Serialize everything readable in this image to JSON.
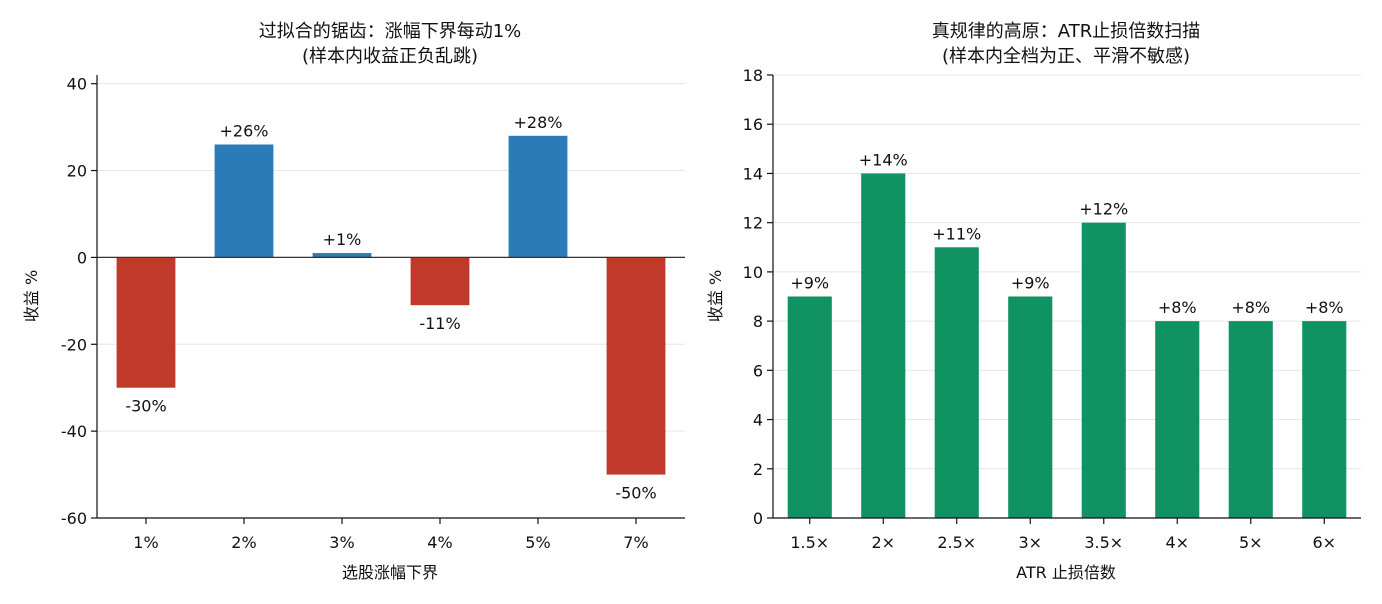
{
  "chart_data": [
    {
      "type": "bar",
      "title": "过拟合的锯齿：涨幅下界每动1%",
      "subtitle": "(样本内收益正负乱跳)",
      "xlabel": "选股涨幅下界",
      "ylabel": "收益 %",
      "categories": [
        "1%",
        "2%",
        "3%",
        "4%",
        "5%",
        "7%"
      ],
      "values": [
        -30,
        26,
        1,
        -11,
        28,
        -50
      ],
      "data_labels": [
        "-30%",
        "+26%",
        "+1%",
        "-11%",
        "+28%",
        "-50%"
      ],
      "ylim": [
        -60,
        42
      ],
      "yticks": [
        40,
        20,
        0,
        -20,
        -40,
        -60
      ],
      "ytick_labels": [
        "40",
        "20",
        "0",
        "-20",
        "-40",
        "-60"
      ],
      "grid": true,
      "colors": {
        "positive": "#2b7bb9",
        "negative": "#c0392b"
      }
    },
    {
      "type": "bar",
      "title": "真规律的高原：ATR止损倍数扫描",
      "subtitle": "(样本内全档为正、平滑不敏感)",
      "xlabel": "ATR 止损倍数",
      "ylabel": "收益 %",
      "categories": [
        "1.5×",
        "2×",
        "2.5×",
        "3×",
        "3.5×",
        "4×",
        "5×",
        "6×"
      ],
      "values": [
        9,
        14,
        11,
        9,
        12,
        8,
        8,
        8
      ],
      "data_labels": [
        "+9%",
        "+14%",
        "+11%",
        "+9%",
        "+12%",
        "+8%",
        "+8%",
        "+8%"
      ],
      "ylim": [
        0,
        18
      ],
      "yticks": [
        0,
        2,
        4,
        6,
        8,
        10,
        12,
        14,
        16,
        18
      ],
      "ytick_labels": [
        "0",
        "2",
        "4",
        "6",
        "8",
        "10",
        "12",
        "14",
        "16",
        "18"
      ],
      "grid": true,
      "colors": {
        "bar": "#109262"
      }
    }
  ]
}
